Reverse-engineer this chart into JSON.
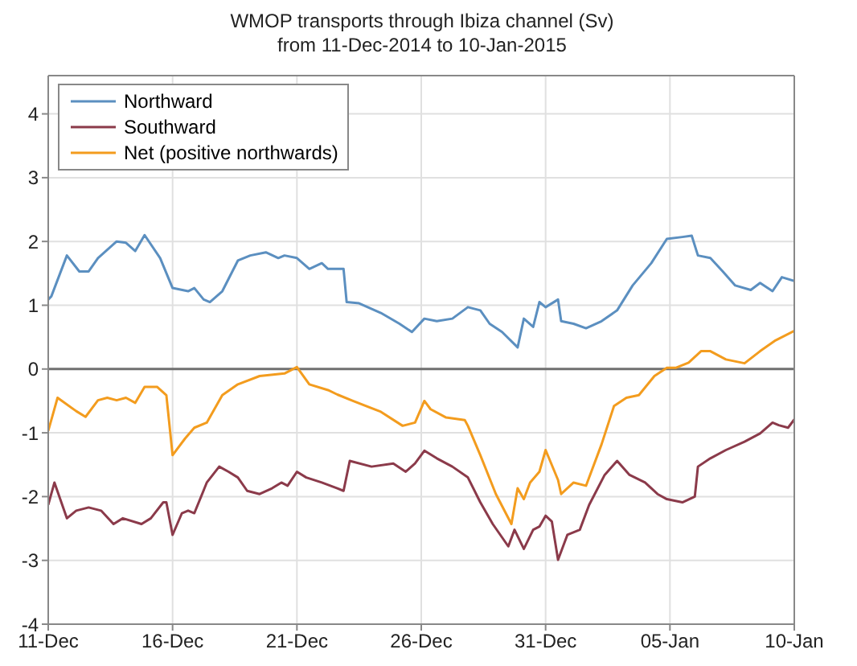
{
  "chart_data": {
    "type": "line",
    "title": "WMOP transports through Ibiza channel (Sv)",
    "subtitle": "from 11-Dec-2014 to 10-Jan-2015",
    "xlim": [
      "2014-12-11",
      "2015-01-10"
    ],
    "xticks": [
      {
        "value": "2014-12-11",
        "label": "11-Dec"
      },
      {
        "value": "2014-12-16",
        "label": "16-Dec"
      },
      {
        "value": "2014-12-21",
        "label": "21-Dec"
      },
      {
        "value": "2014-12-26",
        "label": "26-Dec"
      },
      {
        "value": "2014-12-31",
        "label": "31-Dec"
      },
      {
        "value": "2015-01-05",
        "label": "05-Jan"
      },
      {
        "value": "2015-01-10",
        "label": "10-Jan"
      }
    ],
    "ylim": [
      -4,
      4.6
    ],
    "yticks": [
      -4,
      -3,
      -2,
      -1,
      0,
      1,
      2,
      3,
      4
    ],
    "grid": true,
    "legend": "top left",
    "marker": "none",
    "line_style": "solid",
    "ref_lines": [
      {
        "axis": "y",
        "value": 0,
        "color": "#707070"
      }
    ],
    "series": [
      {
        "name": "Northward",
        "color": "#5b8fc0",
        "x": [
          "2014-12-11T00:00",
          "2014-12-11T03:00",
          "2014-12-11T18:00",
          "2014-12-12T06:00",
          "2014-12-12T15:00",
          "2014-12-13T00:00",
          "2014-12-13T18:00",
          "2014-12-14T03:00",
          "2014-12-14T12:00",
          "2014-12-14T21:00",
          "2014-12-15T12:00",
          "2014-12-16T00:00",
          "2014-12-16T15:00",
          "2014-12-16T21:00",
          "2014-12-17T06:00",
          "2014-12-17T12:00",
          "2014-12-18T00:00",
          "2014-12-18T15:00",
          "2014-12-19T03:00",
          "2014-12-19T18:00",
          "2014-12-20T06:00",
          "2014-12-20T12:00",
          "2014-12-21T00:00",
          "2014-12-21T12:00",
          "2014-12-22T00:00",
          "2014-12-22T06:00",
          "2014-12-22T21:00",
          "2014-12-23T00:00",
          "2014-12-23T12:00",
          "2014-12-24T09:00",
          "2014-12-25T03:00",
          "2014-12-25T15:00",
          "2014-12-26T03:00",
          "2014-12-26T15:00",
          "2014-12-27T06:00",
          "2014-12-27T21:00",
          "2014-12-28T09:00",
          "2014-12-28T18:00",
          "2014-12-29T06:00",
          "2014-12-29T21:00",
          "2014-12-30T03:00",
          "2014-12-30T12:00",
          "2014-12-30T18:00",
          "2014-12-31T00:00",
          "2014-12-31T12:00",
          "2014-12-31T15:00",
          "2015-01-01T03:00",
          "2015-01-01T15:00",
          "2015-01-02T06:00",
          "2015-01-02T21:00",
          "2015-01-03T12:00",
          "2015-01-04T06:00",
          "2015-01-04T21:00",
          "2015-01-05T12:00",
          "2015-01-05T21:00",
          "2015-01-06T03:00",
          "2015-01-06T15:00",
          "2015-01-07T03:00",
          "2015-01-07T15:00",
          "2015-01-08T06:00",
          "2015-01-08T15:00",
          "2015-01-09T03:00",
          "2015-01-09T12:00",
          "2015-01-10T00:00"
        ],
        "values": [
          1.09,
          1.14,
          1.78,
          1.53,
          1.53,
          1.74,
          2.0,
          1.98,
          1.85,
          2.1,
          1.74,
          1.27,
          1.22,
          1.27,
          1.09,
          1.05,
          1.22,
          1.7,
          1.78,
          1.83,
          1.74,
          1.78,
          1.74,
          1.57,
          1.66,
          1.57,
          1.57,
          1.05,
          1.03,
          0.88,
          0.71,
          0.58,
          0.79,
          0.75,
          0.79,
          0.97,
          0.92,
          0.71,
          0.58,
          0.34,
          0.79,
          0.66,
          1.05,
          0.97,
          1.09,
          0.75,
          0.71,
          0.64,
          0.75,
          0.92,
          1.31,
          1.66,
          2.04,
          2.07,
          2.09,
          1.78,
          1.74,
          1.53,
          1.31,
          1.24,
          1.35,
          1.22,
          1.44,
          1.38
        ]
      },
      {
        "name": "Southward",
        "color": "#8b3a4a",
        "x": [
          "2014-12-11T00:00",
          "2014-12-11T06:00",
          "2014-12-11T18:00",
          "2014-12-12T03:00",
          "2014-12-12T15:00",
          "2014-12-13T03:00",
          "2014-12-13T15:00",
          "2014-12-14T00:00",
          "2014-12-14T18:00",
          "2014-12-15T03:00",
          "2014-12-15T15:00",
          "2014-12-15T18:00",
          "2014-12-16T00:00",
          "2014-12-16T09:00",
          "2014-12-16T15:00",
          "2014-12-16T21:00",
          "2014-12-17T09:00",
          "2014-12-17T21:00",
          "2014-12-18T06:00",
          "2014-12-18T15:00",
          "2014-12-19T00:00",
          "2014-12-19T12:00",
          "2014-12-20T00:00",
          "2014-12-20T09:00",
          "2014-12-20T15:00",
          "2014-12-21T00:00",
          "2014-12-21T09:00",
          "2014-12-22T00:00",
          "2014-12-22T15:00",
          "2014-12-22T21:00",
          "2014-12-23T03:00",
          "2014-12-24T00:00",
          "2014-12-24T21:00",
          "2014-12-25T09:00",
          "2014-12-25T18:00",
          "2014-12-26T03:00",
          "2014-12-26T15:00",
          "2014-12-27T06:00",
          "2014-12-27T21:00",
          "2014-12-28T09:00",
          "2014-12-28T21:00",
          "2014-12-29T12:00",
          "2014-12-29T18:00",
          "2014-12-30T03:00",
          "2014-12-30T12:00",
          "2014-12-30T18:00",
          "2014-12-31T00:00",
          "2014-12-31T06:00",
          "2014-12-31T12:00",
          "2014-12-31T21:00",
          "2015-01-01T09:00",
          "2015-01-01T18:00",
          "2015-01-02T09:00",
          "2015-01-02T21:00",
          "2015-01-03T09:00",
          "2015-01-04T00:00",
          "2015-01-04T12:00",
          "2015-01-04T21:00",
          "2015-01-05T12:00",
          "2015-01-06T00:00",
          "2015-01-06T03:00",
          "2015-01-06T15:00",
          "2015-01-07T06:00",
          "2015-01-08T00:00",
          "2015-01-08T15:00",
          "2015-01-09T03:00",
          "2015-01-09T09:00",
          "2015-01-09T18:00",
          "2015-01-10T00:00"
        ],
        "values": [
          -2.13,
          -1.78,
          -2.34,
          -2.22,
          -2.17,
          -2.22,
          -2.43,
          -2.34,
          -2.43,
          -2.34,
          -2.09,
          -2.09,
          -2.6,
          -2.26,
          -2.22,
          -2.26,
          -1.78,
          -1.53,
          -1.61,
          -1.7,
          -1.91,
          -1.96,
          -1.87,
          -1.78,
          -1.83,
          -1.61,
          -1.7,
          -1.78,
          -1.87,
          -1.91,
          -1.44,
          -1.53,
          -1.48,
          -1.61,
          -1.48,
          -1.28,
          -1.4,
          -1.53,
          -1.7,
          -2.09,
          -2.43,
          -2.78,
          -2.52,
          -2.82,
          -2.52,
          -2.47,
          -2.3,
          -2.39,
          -2.99,
          -2.6,
          -2.52,
          -2.13,
          -1.66,
          -1.44,
          -1.66,
          -1.78,
          -1.96,
          -2.04,
          -2.09,
          -2.0,
          -1.53,
          -1.4,
          -1.27,
          -1.14,
          -1.01,
          -0.84,
          -0.88,
          -0.92,
          -0.79
        ]
      },
      {
        "name": "Net (positive northwards)",
        "color": "#f39c1e",
        "x": [
          "2014-12-11T00:00",
          "2014-12-11T09:00",
          "2014-12-12T03:00",
          "2014-12-12T12:00",
          "2014-12-13T00:00",
          "2014-12-13T09:00",
          "2014-12-13T18:00",
          "2014-12-14T03:00",
          "2014-12-14T12:00",
          "2014-12-14T21:00",
          "2014-12-15T09:00",
          "2014-12-15T18:00",
          "2014-12-16T00:00",
          "2014-12-16T12:00",
          "2014-12-16T21:00",
          "2014-12-17T09:00",
          "2014-12-18T00:00",
          "2014-12-18T15:00",
          "2014-12-19T12:00",
          "2014-12-20T12:00",
          "2014-12-21T00:00",
          "2014-12-21T12:00",
          "2014-12-22T06:00",
          "2014-12-22T15:00",
          "2014-12-23T06:00",
          "2014-12-24T09:00",
          "2014-12-25T06:00",
          "2014-12-25T18:00",
          "2014-12-26T03:00",
          "2014-12-26T09:00",
          "2014-12-27T00:00",
          "2014-12-27T18:00",
          "2014-12-27T21:00",
          "2014-12-28T09:00",
          "2014-12-29T00:00",
          "2014-12-29T15:00",
          "2014-12-29T21:00",
          "2014-12-30T03:00",
          "2014-12-30T09:00",
          "2014-12-30T18:00",
          "2014-12-31T00:00",
          "2014-12-31T12:00",
          "2014-12-31T15:00",
          "2015-01-01T03:00",
          "2015-01-01T15:00",
          "2015-01-02T06:00",
          "2015-01-02T18:00",
          "2015-01-03T06:00",
          "2015-01-03T18:00",
          "2015-01-04T09:00",
          "2015-01-04T21:00",
          "2015-01-05T06:00",
          "2015-01-05T18:00",
          "2015-01-06T06:00",
          "2015-01-06T15:00",
          "2015-01-07T06:00",
          "2015-01-08T00:00",
          "2015-01-08T15:00",
          "2015-01-09T06:00",
          "2015-01-10T00:00"
        ],
        "values": [
          -0.97,
          -0.45,
          -0.66,
          -0.75,
          -0.49,
          -0.45,
          -0.49,
          -0.45,
          -0.53,
          -0.28,
          -0.28,
          -0.41,
          -1.35,
          -1.09,
          -0.92,
          -0.84,
          -0.41,
          -0.24,
          -0.11,
          -0.07,
          0.03,
          -0.24,
          -0.33,
          -0.4,
          -0.5,
          -0.67,
          -0.89,
          -0.84,
          -0.5,
          -0.63,
          -0.76,
          -0.8,
          -0.89,
          -1.35,
          -1.96,
          -2.43,
          -1.87,
          -2.04,
          -1.78,
          -1.61,
          -1.27,
          -1.74,
          -1.96,
          -1.78,
          -1.83,
          -1.18,
          -0.58,
          -0.45,
          -0.41,
          -0.11,
          0.02,
          0.02,
          0.1,
          0.28,
          0.28,
          0.15,
          0.09,
          0.28,
          0.45,
          0.6
        ]
      }
    ]
  }
}
